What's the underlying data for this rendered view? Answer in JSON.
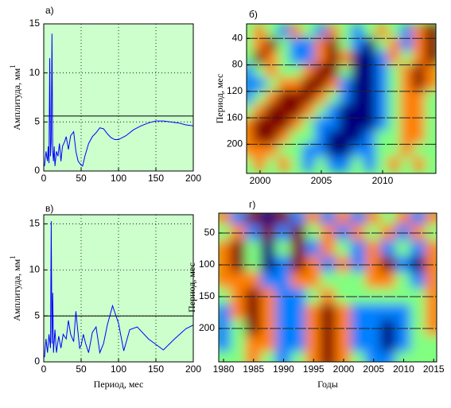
{
  "chart_data": [
    {
      "type": "line",
      "label": "а)",
      "ylabel": "Амплитуда, мм",
      "ylabel_sup": "1",
      "x": [
        1,
        3,
        5,
        6,
        7,
        8,
        9,
        10,
        11,
        12,
        13,
        14,
        15,
        17,
        19,
        21,
        23,
        25,
        28,
        30,
        33,
        36,
        40,
        43,
        46,
        50,
        52,
        55,
        60,
        65,
        70,
        75,
        80,
        85,
        90,
        95,
        100,
        110,
        120,
        130,
        140,
        150,
        160,
        170,
        180,
        190,
        200
      ],
      "values": [
        0.5,
        2,
        1,
        2.5,
        0.8,
        11.5,
        1.5,
        3,
        14,
        2,
        1,
        2.5,
        0.5,
        2,
        1.5,
        2.8,
        1,
        2.5,
        3,
        3.5,
        2.2,
        3.6,
        4,
        2,
        1,
        0.6,
        0.5,
        1.5,
        2.8,
        3.5,
        3.9,
        4.4,
        4.3,
        3.8,
        3.4,
        3.2,
        3.2,
        3.6,
        4.2,
        4.6,
        4.9,
        5.1,
        5.1,
        5.0,
        4.9,
        4.7,
        4.6
      ],
      "color": "#0000ff",
      "background": "#ccffcc",
      "grid": true,
      "hline": 5.6,
      "xlim": [
        0,
        200
      ],
      "ylim": [
        0,
        15
      ],
      "xticks": [
        0,
        50,
        100,
        150,
        200
      ],
      "yticks": [
        0,
        5,
        10,
        15
      ]
    },
    {
      "type": "heatmap",
      "label": "б)",
      "ylabel": "Период, мес",
      "grid": true,
      "y_inverted": true,
      "x": [
        1999,
        2000,
        2001,
        2002,
        2003,
        2004,
        2005,
        2006,
        2007,
        2008,
        2009,
        2010,
        2011,
        2012,
        2013,
        2014
      ],
      "y": [
        30,
        50,
        70,
        90,
        110,
        130,
        150,
        170,
        190,
        210,
        230
      ],
      "z": [
        [
          0,
          1,
          0,
          -1,
          1,
          0,
          -1,
          1,
          0,
          -1,
          0,
          1,
          0,
          -1,
          1,
          2
        ],
        [
          0,
          1,
          2,
          0,
          -1,
          -1,
          1,
          2,
          0,
          -1,
          -2,
          0,
          1,
          -1,
          1,
          2
        ],
        [
          0,
          2,
          1,
          0,
          -1,
          -1,
          1,
          2,
          1,
          -2,
          -2,
          -1,
          1,
          0,
          1,
          2
        ],
        [
          -1,
          0,
          1,
          0,
          0,
          1,
          2,
          2,
          0,
          -2,
          -2,
          -1,
          0,
          1,
          2,
          1
        ],
        [
          -1,
          -1,
          0,
          1,
          1,
          2,
          2,
          1,
          -1,
          -2,
          -2,
          -1,
          0,
          1,
          2,
          1
        ],
        [
          -1,
          0,
          1,
          2,
          2,
          2,
          1,
          0,
          -1,
          -2,
          -2,
          -1,
          0,
          1,
          1,
          0
        ],
        [
          0,
          1,
          2,
          2,
          2,
          1,
          0,
          -1,
          -2,
          -2,
          -2,
          -1,
          0,
          1,
          1,
          0
        ],
        [
          1,
          2,
          2,
          2,
          1,
          0,
          -1,
          -1,
          -2,
          -2,
          -2,
          -1,
          0,
          1,
          1,
          0
        ],
        [
          1,
          2,
          2,
          1,
          0,
          0,
          -1,
          -2,
          -2,
          -2,
          -1,
          0,
          0,
          1,
          1,
          0
        ],
        [
          1,
          1,
          1,
          0,
          0,
          -1,
          -1,
          -2,
          -2,
          -1,
          -1,
          0,
          0,
          1,
          0,
          0
        ],
        [
          0,
          1,
          0,
          1,
          0,
          -1,
          0,
          -1,
          -1,
          0,
          -1,
          0,
          1,
          0,
          1,
          0
        ]
      ],
      "zlim": [
        -2,
        2
      ],
      "xlim": [
        1998.9,
        2014.35
      ],
      "ylim": [
        18,
        244
      ],
      "xticks": [
        2000,
        2005,
        2010
      ],
      "yticks": [
        40,
        80,
        120,
        160,
        200
      ]
    },
    {
      "type": "line",
      "label": "в)",
      "ylabel": "Амплитуда, мм",
      "ylabel_sup": "1",
      "xlabel": "Период, мес",
      "x": [
        1,
        3,
        5,
        7,
        9,
        10,
        11,
        12,
        13,
        15,
        17,
        20,
        23,
        26,
        30,
        33,
        36,
        40,
        43,
        45,
        48,
        50,
        53,
        56,
        60,
        65,
        70,
        75,
        80,
        85,
        92,
        100,
        107,
        115,
        125,
        140,
        160,
        175,
        190,
        200
      ],
      "values": [
        0.5,
        2.5,
        1,
        3,
        1.5,
        15.3,
        2,
        7.5,
        1,
        3.5,
        1,
        2.8,
        1.5,
        3,
        2.5,
        4.5,
        3,
        2.2,
        5.5,
        3.8,
        1.5,
        1.8,
        3,
        2,
        1,
        3.2,
        3.8,
        1,
        2,
        4,
        6.1,
        4.2,
        1.2,
        3.5,
        3.8,
        2.5,
        1.3,
        2.5,
        3.6,
        4
      ],
      "color": "#0000ff",
      "background": "#ccffcc",
      "grid": true,
      "hline": 5,
      "xlim": [
        0,
        200
      ],
      "ylim": [
        0,
        16
      ],
      "xticks": [
        0,
        50,
        100,
        150,
        200
      ],
      "yticks": [
        0,
        5,
        10,
        15
      ]
    },
    {
      "type": "heatmap",
      "label": "г)",
      "ylabel": "Период, мес",
      "xlabel": "Годы",
      "grid": true,
      "y_inverted": true,
      "x": [
        1980,
        1982.5,
        1985,
        1987.5,
        1990,
        1992.5,
        1995,
        1997.5,
        2000,
        2002.5,
        2005,
        2007.5,
        2010,
        2012.5,
        2015
      ],
      "y": [
        25,
        50,
        75,
        100,
        125,
        150,
        175,
        200,
        225,
        250
      ],
      "z": [
        [
          1,
          -1,
          2,
          -2,
          2,
          -1,
          1,
          -1,
          1,
          -1,
          1,
          0,
          1,
          -1,
          1
        ],
        [
          0,
          1,
          -1,
          2,
          -1,
          2,
          0,
          1,
          -1,
          1,
          0,
          1,
          -1,
          1,
          0
        ],
        [
          1,
          2,
          0,
          -2,
          0,
          2,
          -1,
          1,
          0,
          -1,
          1,
          -1,
          0,
          -1,
          1
        ],
        [
          1,
          2,
          0,
          -2,
          -1,
          2,
          1,
          -1,
          1,
          -1,
          1,
          2,
          -1,
          -2,
          1
        ],
        [
          1,
          1,
          1,
          -1,
          -1,
          1,
          1,
          0,
          0,
          0,
          1,
          1,
          0,
          -1,
          1
        ],
        [
          0,
          1,
          2,
          1,
          -1,
          -1,
          0,
          1,
          0,
          0,
          0,
          0,
          0,
          0,
          1
        ],
        [
          -1,
          1,
          2,
          1,
          -1,
          -1,
          1,
          2,
          1,
          -1,
          -1,
          -1,
          -1,
          0,
          1
        ],
        [
          -1,
          0,
          2,
          1,
          -1,
          -1,
          1,
          2,
          1,
          -1,
          -1,
          -2,
          -1,
          0,
          1
        ],
        [
          -1,
          0,
          1,
          1,
          -1,
          -1,
          1,
          2,
          1,
          -1,
          -1,
          -2,
          -1,
          0,
          0
        ],
        [
          0,
          0,
          1,
          0,
          -1,
          0,
          1,
          2,
          1,
          0,
          -1,
          -1,
          0,
          0,
          0
        ]
      ],
      "zlim": [
        -2,
        2
      ],
      "xlim": [
        1979.2,
        2015.5
      ],
      "ylim": [
        18.75,
        252.5
      ],
      "xticks": [
        1980,
        1985,
        1990,
        1995,
        2000,
        2005,
        2010,
        2015
      ],
      "yticks": [
        50,
        100,
        150,
        200
      ]
    }
  ]
}
